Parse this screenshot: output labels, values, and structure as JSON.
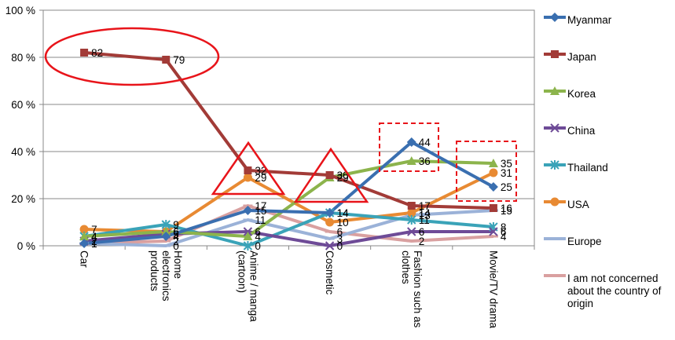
{
  "chart_data": {
    "type": "line",
    "categories": [
      "Car",
      "Home electronics products",
      "Anime / manga (cartoon)",
      "Cosmetic",
      "Fashion such as clothes",
      "Movie/TV drama"
    ],
    "ylim": [
      0,
      100
    ],
    "yticks": [
      "0 %",
      "20 %",
      "40 %",
      "60 %",
      "80 %",
      "100 %"
    ],
    "grid": true,
    "legend_position": "right",
    "series": [
      {
        "name": "Myanmar",
        "color": "#3a6fb0",
        "marker": "diamond",
        "values": [
          1,
          4,
          15,
          14,
          44,
          25
        ]
      },
      {
        "name": "Japan",
        "color": "#a23b37",
        "marker": "square",
        "values": [
          82,
          79,
          32,
          30,
          17,
          16
        ]
      },
      {
        "name": "Korea",
        "color": "#8cb44c",
        "marker": "triangle",
        "values": [
          4,
          6,
          4,
          29,
          36,
          35
        ]
      },
      {
        "name": "China",
        "color": "#6e4b97",
        "marker": "x",
        "values": [
          2,
          5,
          6,
          0,
          6,
          6
        ]
      },
      {
        "name": "Thailand",
        "color": "#3aa3b8",
        "marker": "star",
        "values": [
          4,
          9,
          0,
          14,
          11,
          8
        ]
      },
      {
        "name": "USA",
        "color": "#e88a33",
        "marker": "circle",
        "values": [
          7,
          6,
          29,
          10,
          14,
          31
        ]
      },
      {
        "name": "Europe",
        "color": "#9bb2d8",
        "marker": "dash",
        "values": [
          1,
          0,
          11,
          3,
          13,
          15
        ]
      },
      {
        "name": "I am not concerned about the country of origin",
        "color": "#d9a0a0",
        "marker": "dash",
        "values": [
          1,
          2,
          17,
          6,
          2,
          4
        ]
      }
    ],
    "annotations": [
      "red ellipse around Japan Car and Home electronics values",
      "red triangles at Anime / manga and Cosmetic",
      "red dashed boxes at Fashion such as clothes and Movie/TV drama"
    ]
  }
}
